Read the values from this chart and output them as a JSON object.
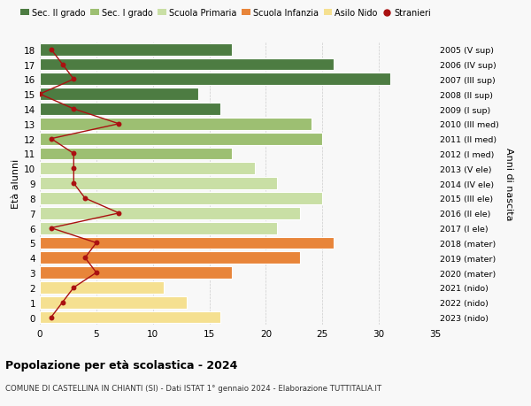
{
  "ages": [
    0,
    1,
    2,
    3,
    4,
    5,
    6,
    7,
    8,
    9,
    10,
    11,
    12,
    13,
    14,
    15,
    16,
    17,
    18
  ],
  "bar_values": [
    16,
    13,
    11,
    17,
    23,
    26,
    21,
    23,
    25,
    21,
    19,
    17,
    25,
    24,
    16,
    14,
    31,
    26,
    17
  ],
  "bar_colors": [
    "#f5e090",
    "#f5e090",
    "#f5e090",
    "#e8853a",
    "#e8853a",
    "#e8853a",
    "#c9dfa5",
    "#c9dfa5",
    "#c9dfa5",
    "#c9dfa5",
    "#c9dfa5",
    "#9dbf72",
    "#9dbf72",
    "#9dbf72",
    "#4d7c42",
    "#4d7c42",
    "#4d7c42",
    "#4d7c42",
    "#4d7c42"
  ],
  "stranieri_values": [
    1,
    2,
    3,
    5,
    4,
    5,
    1,
    7,
    4,
    3,
    3,
    3,
    1,
    7,
    3,
    0,
    3,
    2,
    1
  ],
  "right_labels": [
    "2023 (nido)",
    "2022 (nido)",
    "2021 (nido)",
    "2020 (mater)",
    "2019 (mater)",
    "2018 (mater)",
    "2017 (I ele)",
    "2016 (II ele)",
    "2015 (III ele)",
    "2014 (IV ele)",
    "2013 (V ele)",
    "2012 (I med)",
    "2011 (II med)",
    "2010 (III med)",
    "2009 (I sup)",
    "2008 (II sup)",
    "2007 (III sup)",
    "2006 (IV sup)",
    "2005 (V sup)"
  ],
  "legend_labels": [
    "Sec. II grado",
    "Sec. I grado",
    "Scuola Primaria",
    "Scuola Infanzia",
    "Asilo Nido",
    "Stranieri"
  ],
  "legend_colors": [
    "#4d7c42",
    "#9dbf72",
    "#c9dfa5",
    "#e8853a",
    "#f5e090",
    "#cc2222"
  ],
  "ylabel_left": "Età alunni",
  "ylabel_right": "Anni di nascita",
  "xlim": [
    0,
    35
  ],
  "xticks": [
    0,
    5,
    10,
    15,
    20,
    25,
    30,
    35
  ],
  "title": "Popolazione per età scolastica - 2024",
  "subtitle": "COMUNE DI CASTELLINA IN CHIANTI (SI) - Dati ISTAT 1° gennaio 2024 - Elaborazione TUTTITALIA.IT",
  "bg_color": "#f8f8f8",
  "bar_height": 0.82,
  "stranieri_color": "#aa1111",
  "grid_color": "#cccccc"
}
